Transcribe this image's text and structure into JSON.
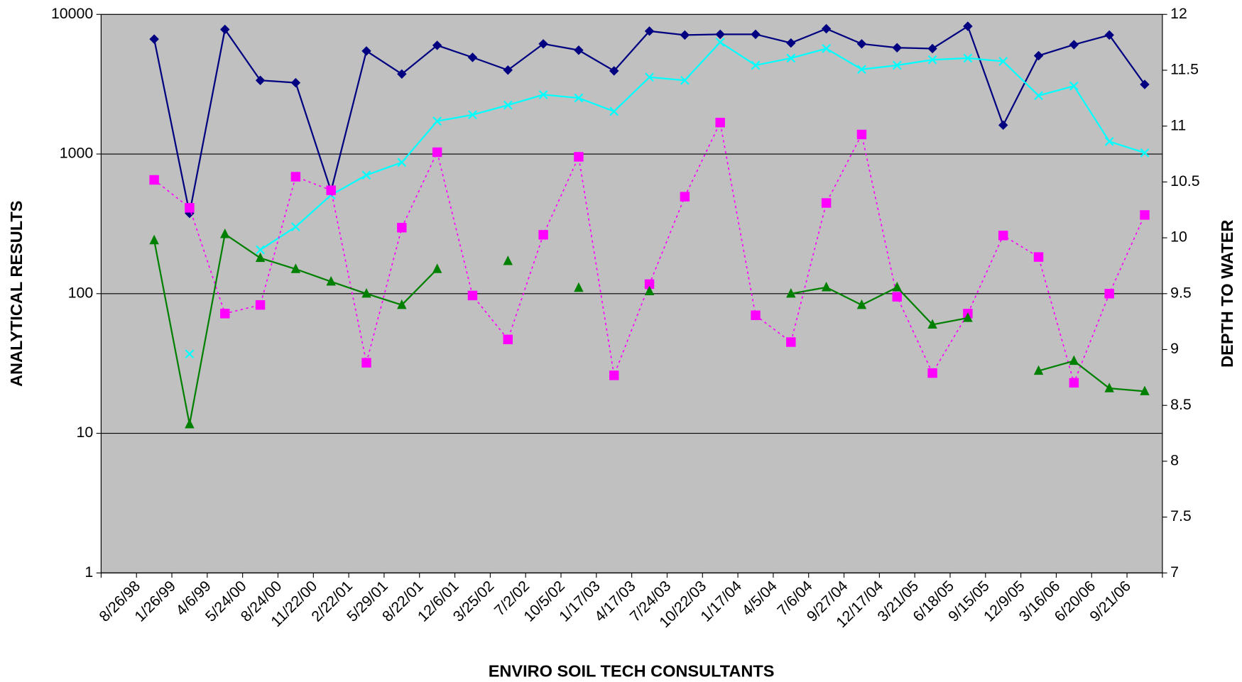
{
  "chart_data": {
    "type": "line",
    "x_label": "ENVIRO SOIL TECH CONSULTANTS",
    "y_label": "ANALYTICAL RESULTS",
    "y2_label": "DEPTH TO WATER",
    "categories": [
      "8/26/98",
      "1/26/99",
      "4/6/99",
      "5/24/00",
      "8/24/00",
      "11/22/00",
      "2/22/01",
      "5/29/01",
      "8/22/01",
      "12/6/01",
      "3/25/02",
      "7/2/02",
      "10/5/02",
      "1/17/03",
      "4/17/03",
      "7/24/03",
      "10/22/03",
      "1/17/04",
      "4/5/04",
      "7/6/04",
      "9/27/04",
      "12/17/04",
      "3/21/05",
      "6/18/05",
      "9/15/05",
      "12/9/05",
      "3/16/06",
      "6/20/06",
      "9/21/06"
    ],
    "series": [
      {
        "color": "#000080",
        "marker": "diamond",
        "line": "solid",
        "values": [
          6650,
          376,
          7800,
          3370,
          3240,
          543,
          5470,
          3740,
          6000,
          4920,
          3990,
          6150,
          5540,
          3940,
          7590,
          7110,
          7200,
          7200,
          6240,
          7890,
          6150,
          5770,
          5690,
          8220,
          1610,
          5060,
          6070,
          7110,
          3150
        ]
      },
      {
        "color": "#00ffff",
        "marker": "x",
        "line": "solid",
        "values": [
          null,
          37,
          null,
          206,
          301,
          509,
          706,
          871,
          1720,
          1910,
          2240,
          2660,
          2520,
          2020,
          3550,
          3370,
          6320,
          4320,
          4860,
          5690,
          4040,
          4320,
          4730,
          4860,
          4610,
          2620,
          3070,
          1230,
          1020
        ]
      },
      {
        "color": "#ff00ff",
        "marker": "square",
        "line": "dotted",
        "values": [
          653,
          412,
          72,
          83,
          688,
          550,
          32,
          297,
          1030,
          97,
          47,
          264,
          955,
          26,
          117,
          495,
          1680,
          70,
          45,
          446,
          1380,
          95,
          27,
          72,
          261,
          183,
          23,
          100,
          366
        ]
      },
      {
        "color": "#008000",
        "marker": "triangle",
        "line": "solid",
        "values": [
          241,
          11.6,
          267,
          180,
          150,
          122,
          100,
          83,
          150,
          null,
          171,
          null,
          110,
          null,
          104,
          null,
          null,
          null,
          100,
          111,
          83,
          111,
          60,
          67,
          null,
          28,
          33,
          21,
          20
        ]
      }
    ],
    "log_y": true,
    "ylim": [
      1,
      10000
    ],
    "yticks": [
      1,
      10,
      100,
      1000,
      10000
    ],
    "y2lim": [
      7,
      12
    ],
    "y2ticks": [
      7,
      7.5,
      8,
      8.5,
      9,
      9.5,
      10,
      10.5,
      11,
      11.5,
      12
    ],
    "grid": true,
    "plot_background": "#c0c0c0"
  }
}
